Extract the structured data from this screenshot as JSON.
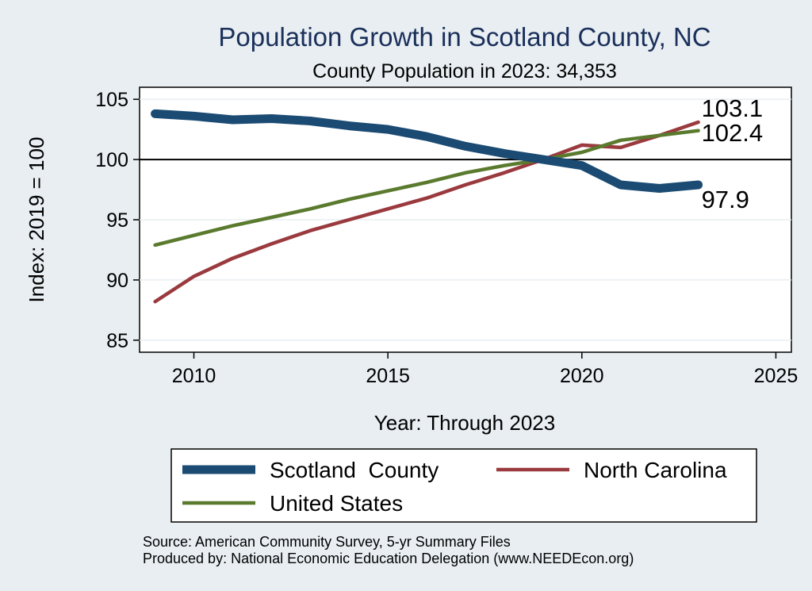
{
  "chart_data": {
    "type": "line",
    "title": "Population Growth in Scotland County, NC",
    "subtitle": "County Population in 2023: 34,353",
    "xlabel": "Year: Through 2023",
    "ylabel": "Index: 2019 = 100",
    "xlim": [
      2008.6,
      2025.4
    ],
    "ylim": [
      84,
      106
    ],
    "xticks": [
      2010,
      2015,
      2020,
      2025
    ],
    "yticks": [
      85,
      90,
      95,
      100,
      105
    ],
    "reference_line": 100,
    "grid": true,
    "legend_position": "bottom",
    "x": [
      2009,
      2010,
      2011,
      2012,
      2013,
      2014,
      2015,
      2016,
      2017,
      2018,
      2019,
      2020,
      2021,
      2022,
      2023
    ],
    "series": [
      {
        "name": "Scotland  County",
        "color": "#1b4b73",
        "values": [
          103.8,
          103.6,
          103.3,
          103.4,
          103.2,
          102.8,
          102.5,
          101.9,
          101.1,
          100.5,
          100.0,
          99.5,
          97.9,
          97.6,
          97.9
        ],
        "end_label": "97.9"
      },
      {
        "name": "North Carolina",
        "color": "#9a3a3e",
        "values": [
          88.2,
          90.3,
          91.8,
          93.0,
          94.1,
          95.0,
          95.9,
          96.8,
          97.9,
          98.9,
          100.0,
          101.2,
          101.0,
          102.0,
          103.1
        ],
        "end_label": "103.1"
      },
      {
        "name": "United States",
        "color": "#5a7a2e",
        "values": [
          92.9,
          93.7,
          94.5,
          95.2,
          95.9,
          96.7,
          97.4,
          98.1,
          98.9,
          99.5,
          100.0,
          100.6,
          101.6,
          102.0,
          102.4
        ],
        "end_label": "102.4"
      }
    ]
  },
  "footer": {
    "source": "Source: American Community Survey, 5-yr Summary Files",
    "produced_by": "Produced by: National Economic Education Delegation (www.NEEDEcon.org)"
  }
}
